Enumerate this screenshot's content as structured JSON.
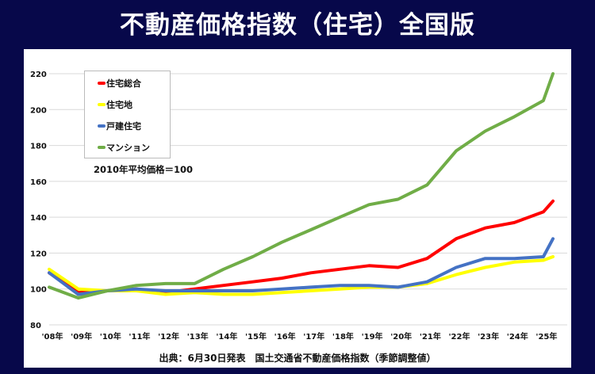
{
  "title": "不動産価格指数（住宅）全国版",
  "chart_data": {
    "type": "line",
    "title": "不動産価格指数（住宅）全国版",
    "note": "2010年平均価格＝100",
    "source": "出典：6月30日発表　国土交通省不動産価格指数（季節調整値）",
    "ylim": [
      80,
      220
    ],
    "yticks": [
      80,
      100,
      120,
      140,
      160,
      180,
      200,
      220
    ],
    "xticks": [
      2008,
      2009,
      2010,
      2011,
      2012,
      2013,
      2014,
      2015,
      2016,
      2017,
      2018,
      2019,
      2020,
      2021,
      2022,
      2023,
      2024,
      2025
    ],
    "xtick_labels": [
      "'08年",
      "'09年",
      "'10年",
      "'11年",
      "'12年",
      "'13年",
      "'14年",
      "'15年",
      "'16年",
      "'17年",
      "'18年",
      "'19年",
      "'20年",
      "'21年",
      "'22年",
      "'23年",
      "'24年",
      "'25年"
    ],
    "grid": true,
    "legend_position": "top-left",
    "x": [
      2008,
      2009,
      2010,
      2011,
      2012,
      2013,
      2014,
      2015,
      2016,
      2017,
      2018,
      2019,
      2020,
      2021,
      2022,
      2023,
      2024,
      2025,
      2025.33
    ],
    "series": [
      {
        "name": "住宅総合",
        "color": "#ff0000",
        "values": [
          109,
          98,
          99,
          100,
          98,
          100,
          102,
          104,
          106,
          109,
          111,
          113,
          112,
          117,
          128,
          134,
          137,
          143,
          149
        ]
      },
      {
        "name": "住宅地",
        "color": "#ffff00",
        "values": [
          111,
          100,
          99,
          99,
          97,
          98,
          97,
          97,
          98,
          99,
          100,
          101,
          101,
          103,
          108,
          112,
          115,
          116,
          118
        ]
      },
      {
        "name": "戸建住宅",
        "color": "#4472c4",
        "values": [
          109,
          97,
          99,
          100,
          99,
          99,
          99,
          99,
          100,
          101,
          102,
          102,
          101,
          104,
          112,
          117,
          117,
          118,
          128
        ]
      },
      {
        "name": "マンション",
        "color": "#70ad47",
        "values": [
          101,
          95,
          99,
          102,
          103,
          103,
          111,
          118,
          126,
          133,
          140,
          147,
          150,
          158,
          177,
          188,
          196,
          205,
          220
        ]
      }
    ]
  }
}
